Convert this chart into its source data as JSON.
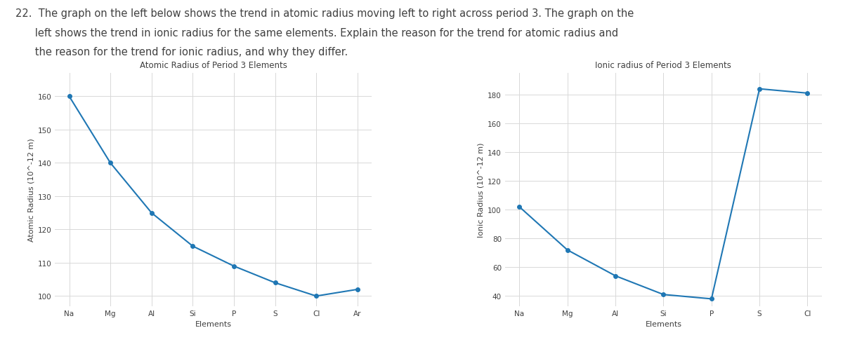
{
  "atomic_elements": [
    "Na",
    "Mg",
    "Al",
    "Si",
    "P",
    "S",
    "Cl",
    "Ar"
  ],
  "atomic_values": [
    160,
    140,
    125,
    115,
    109,
    104,
    100,
    102
  ],
  "atomic_title": "Atomic Radius of Period 3 Elements",
  "atomic_ylabel": "Atomic Radius (10^-12 m)",
  "atomic_xlabel": "Elements",
  "atomic_ylim": [
    97,
    167
  ],
  "atomic_yticks": [
    100,
    110,
    120,
    130,
    140,
    150,
    160
  ],
  "ionic_elements": [
    "Na",
    "Mg",
    "Al",
    "Si",
    "P",
    "S",
    "Cl"
  ],
  "ionic_values": [
    102,
    72,
    54,
    41,
    38,
    184,
    181
  ],
  "ionic_title": "Ionic radius of Period 3 Elements",
  "ionic_ylabel": "Ionic Radius (10^-12 m)",
  "ionic_xlabel": "Elements",
  "ionic_ylim": [
    33,
    195
  ],
  "ionic_yticks": [
    40,
    60,
    80,
    100,
    120,
    140,
    160,
    180
  ],
  "line_color": "#1f77b4",
  "marker": "o",
  "markersize": 4,
  "linewidth": 1.5,
  "grid_color": "#d8d8d8",
  "text_color": "#404040",
  "title_fontsize": 8.5,
  "label_fontsize": 8,
  "tick_fontsize": 7.5,
  "question_line1": "22.  The graph on the left below shows the trend in atomic radius moving left to right across period 3. The graph on the",
  "question_line2": "      left shows the trend in ionic radius for the same elements. Explain the reason for the trend for atomic radius and",
  "question_line3": "      the reason for the trend for ionic radius, and why they differ.",
  "question_fontsize": 10.5,
  "bg_color": "#ffffff"
}
